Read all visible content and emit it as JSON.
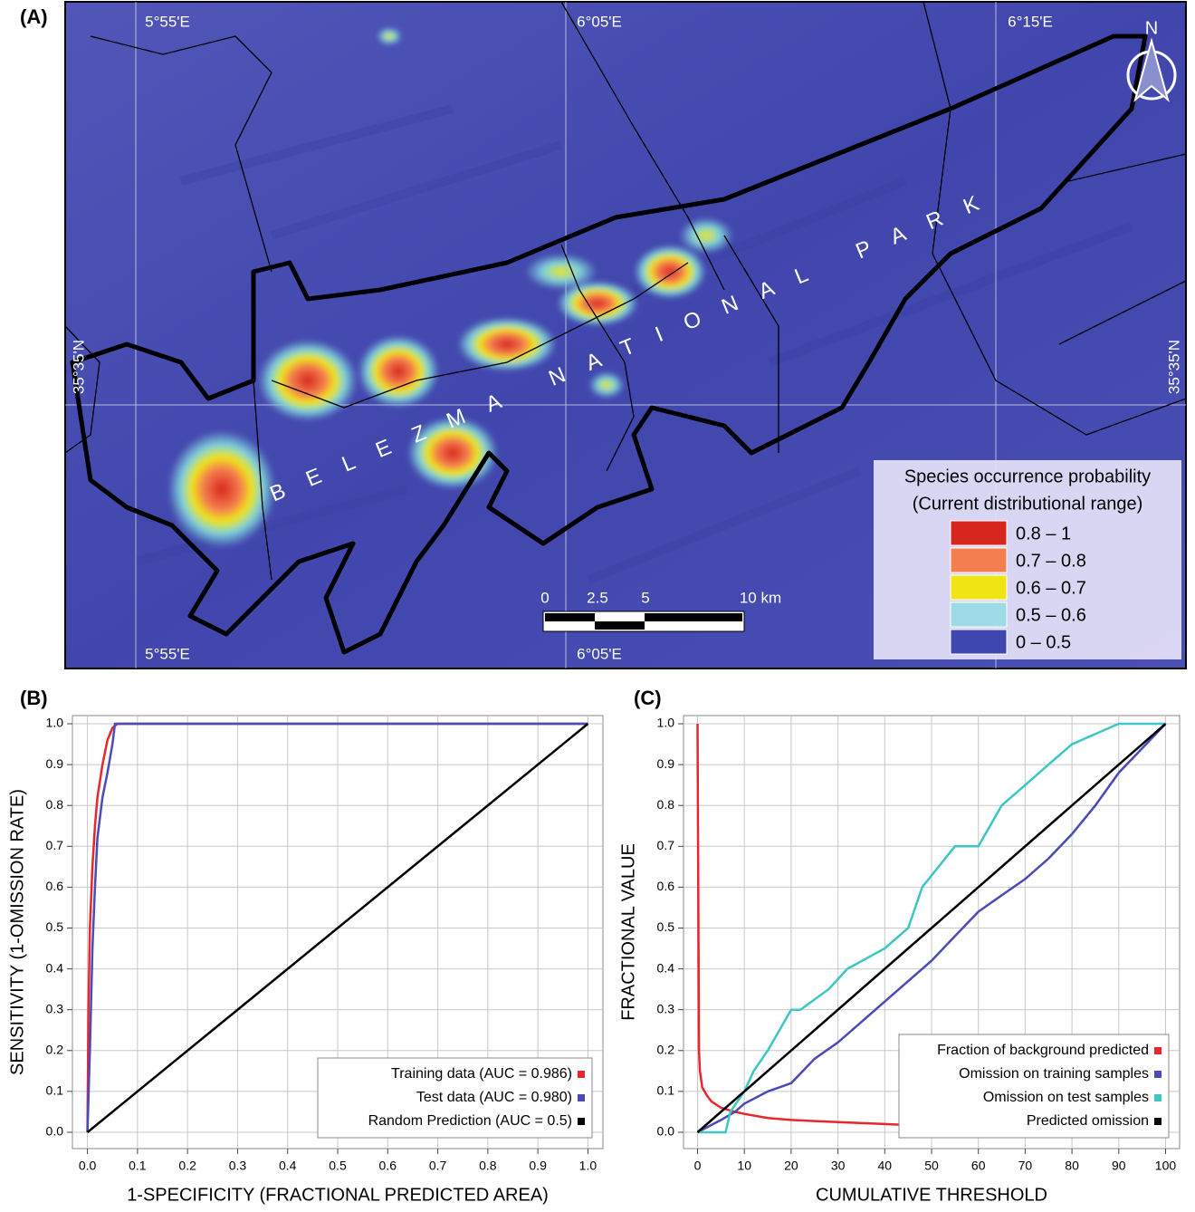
{
  "map": {
    "panel_label": "(A)",
    "top_labels": [
      "5°55'E",
      "6°05'E",
      "6°15'E"
    ],
    "bottom_labels": [
      "5°55'E",
      "6°05'E"
    ],
    "left_label": "35°35'N",
    "right_label": "35°35'N",
    "north": "N",
    "park_name": "BELEZMA NATIONAL PARK",
    "scale_labels": [
      "0",
      "2.5",
      "5",
      "10 km"
    ],
    "legend": {
      "title": [
        "Species occurrence probability",
        "(Current distributional range)"
      ],
      "entries": [
        {
          "label": "0.8 – 1",
          "color": "#d7261e"
        },
        {
          "label": "0.7 – 0.8",
          "color": "#f57e4f"
        },
        {
          "label": "0.6 – 0.7",
          "color": "#f0e514"
        },
        {
          "label": "0.5 – 0.6",
          "color": "#9ddbe6"
        },
        {
          "label": "0 – 0.5",
          "color": "#3e47b0"
        }
      ]
    }
  },
  "chart_data": [
    {
      "type": "line",
      "panel_label": "(B)",
      "xlabel": "1-SPECIFICITY (FRACTIONAL PREDICTED AREA)",
      "ylabel": "SENSITIVITY (1-OMISSION RATE)",
      "xlim": [
        -0.03,
        1.03
      ],
      "ylim": [
        -0.04,
        1.02
      ],
      "xticks": [
        {
          "value": 0,
          "label": "0.0"
        },
        0.1,
        0.2,
        0.3,
        0.4,
        0.5,
        0.6,
        0.7,
        0.8,
        0.9,
        {
          "value": 1,
          "label": "1.0"
        }
      ],
      "yticks": [
        {
          "value": 0,
          "label": "0.0"
        },
        0.1,
        0.2,
        0.3,
        0.4,
        0.5,
        0.6,
        0.7,
        0.8,
        0.9,
        {
          "value": 1,
          "label": "1.0"
        }
      ],
      "grid": true,
      "legend": "lower right",
      "series": [
        {
          "name": "Training data (AUC = 0.986)",
          "color": "#e8262b",
          "x": [
            0,
            0.002,
            0.005,
            0.01,
            0.015,
            0.02,
            0.03,
            0.04,
            0.05,
            0.06,
            1
          ],
          "values": [
            0,
            0.3,
            0.5,
            0.65,
            0.75,
            0.82,
            0.9,
            0.96,
            0.99,
            1,
            1
          ]
        },
        {
          "name": "Test data (AUC = 0.980)",
          "color": "#4a4ab8",
          "x": [
            0,
            0.005,
            0.01,
            0.015,
            0.02,
            0.03,
            0.04,
            0.05,
            0.055,
            1
          ],
          "values": [
            0,
            0.2,
            0.45,
            0.6,
            0.72,
            0.82,
            0.88,
            0.95,
            1,
            1
          ]
        },
        {
          "name": "Random Prediction (AUC = 0.5)",
          "color": "#000000",
          "x": [
            0,
            1
          ],
          "values": [
            0,
            1
          ]
        }
      ]
    },
    {
      "type": "line",
      "panel_label": "(C)",
      "xlabel": "CUMULATIVE THRESHOLD",
      "ylabel": "FRACTIONAL VALUE",
      "xlim": [
        -3,
        103
      ],
      "ylim": [
        -0.04,
        1.02
      ],
      "xticks": [
        0,
        10,
        20,
        30,
        40,
        50,
        60,
        70,
        80,
        90,
        100
      ],
      "yticks": [
        {
          "value": 0,
          "label": "0.0"
        },
        0.1,
        0.2,
        0.3,
        0.4,
        0.5,
        0.6,
        0.7,
        0.8,
        0.9,
        {
          "value": 1,
          "label": "1.0"
        }
      ],
      "grid": true,
      "legend": "lower right",
      "series": [
        {
          "name": "Fraction of background predicted",
          "color": "#e8262b",
          "x": [
            0,
            0.3,
            0.5,
            1,
            2,
            3,
            5,
            8,
            10,
            15,
            20,
            30,
            40,
            50,
            60,
            70,
            80,
            90,
            100
          ],
          "values": [
            1,
            0.2,
            0.15,
            0.11,
            0.09,
            0.075,
            0.06,
            0.05,
            0.045,
            0.035,
            0.03,
            0.025,
            0.02,
            0.015,
            0.012,
            0.01,
            0.008,
            0.005,
            0.003
          ]
        },
        {
          "name": "Omission on training samples",
          "color": "#4a4ab8",
          "x": [
            0,
            5,
            8,
            10,
            15,
            20,
            25,
            30,
            35,
            40,
            45,
            50,
            55,
            60,
            65,
            70,
            75,
            80,
            85,
            90,
            95,
            100
          ],
          "values": [
            0,
            0.03,
            0.05,
            0.07,
            0.1,
            0.12,
            0.18,
            0.22,
            0.27,
            0.32,
            0.37,
            0.42,
            0.48,
            0.54,
            0.58,
            0.62,
            0.67,
            0.73,
            0.8,
            0.88,
            0.94,
            1
          ]
        },
        {
          "name": "Omission on test samples",
          "color": "#3cc6c4",
          "x": [
            0,
            6,
            7,
            10,
            12,
            15,
            20,
            22,
            28,
            32,
            40,
            45,
            48,
            55,
            60,
            65,
            70,
            75,
            80,
            90,
            100
          ],
          "values": [
            0,
            0,
            0.05,
            0.1,
            0.15,
            0.2,
            0.3,
            0.3,
            0.35,
            0.4,
            0.45,
            0.5,
            0.6,
            0.7,
            0.7,
            0.8,
            0.85,
            0.9,
            0.95,
            1,
            1
          ]
        },
        {
          "name": "Predicted omission",
          "color": "#000000",
          "x": [
            0,
            100
          ],
          "values": [
            0,
            1
          ]
        }
      ]
    }
  ]
}
